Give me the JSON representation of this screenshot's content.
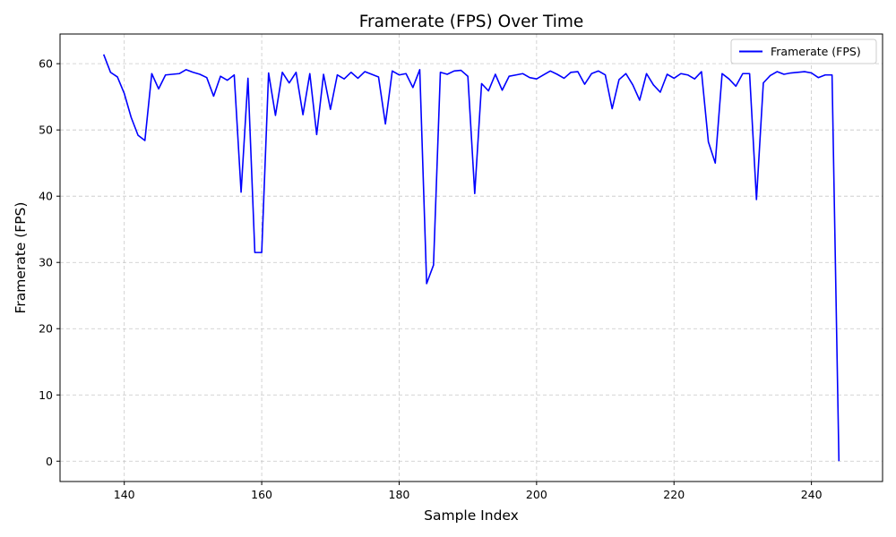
{
  "chart_data": {
    "type": "line",
    "title": "Framerate (FPS) Over Time",
    "xlabel": "Sample Index",
    "ylabel": "Framerate (FPS)",
    "xlim": [
      130.65,
      250.35
    ],
    "ylim": [
      -3.07,
      64.48
    ],
    "xticks": [
      140,
      160,
      180,
      200,
      220,
      240
    ],
    "yticks": [
      0,
      10,
      20,
      30,
      40,
      50,
      60
    ],
    "grid": true,
    "legend_position": "top-right",
    "series": [
      {
        "name": "Framerate (FPS)",
        "color": "#0000ff",
        "x": [
          137,
          138,
          139,
          140,
          141,
          142,
          143,
          144,
          145,
          146,
          147,
          148,
          149,
          150,
          151,
          152,
          153,
          154,
          155,
          156,
          157,
          158,
          159,
          160,
          161,
          162,
          163,
          164,
          165,
          166,
          167,
          168,
          169,
          170,
          171,
          172,
          173,
          174,
          175,
          176,
          177,
          178,
          179,
          180,
          181,
          182,
          183,
          184,
          185,
          186,
          187,
          188,
          189,
          190,
          191,
          192,
          193,
          194,
          195,
          196,
          197,
          198,
          199,
          200,
          201,
          202,
          203,
          204,
          205,
          206,
          207,
          208,
          209,
          210,
          211,
          212,
          213,
          214,
          215,
          216,
          217,
          218,
          219,
          220,
          221,
          222,
          223,
          224,
          225,
          226,
          227,
          228,
          229,
          230,
          231,
          232,
          233,
          234,
          235,
          236,
          237,
          238,
          239,
          240,
          241,
          242,
          243,
          244
        ],
        "y": [
          61.4,
          58.7,
          58.0,
          55.5,
          51.9,
          49.2,
          48.4,
          58.5,
          56.2,
          58.3,
          58.4,
          58.5,
          59.1,
          58.7,
          58.4,
          57.9,
          55.1,
          58.1,
          57.5,
          58.3,
          40.6,
          57.8,
          31.5,
          31.5,
          58.6,
          52.2,
          58.7,
          57.1,
          58.7,
          52.3,
          58.5,
          49.3,
          58.4,
          53.1,
          58.3,
          57.7,
          58.7,
          57.8,
          58.8,
          58.4,
          58.0,
          50.9,
          58.9,
          58.3,
          58.5,
          56.4,
          59.1,
          26.8,
          29.6,
          58.7,
          58.4,
          58.9,
          59.0,
          58.1,
          40.4,
          57.0,
          55.9,
          58.4,
          56.0,
          58.1,
          58.3,
          58.5,
          57.9,
          57.7,
          58.3,
          58.9,
          58.4,
          57.8,
          58.7,
          58.8,
          56.9,
          58.5,
          58.9,
          58.3,
          53.2,
          57.6,
          58.5,
          56.8,
          54.5,
          58.5,
          56.8,
          55.7,
          58.4,
          57.8,
          58.5,
          58.3,
          57.7,
          58.8,
          48.2,
          45.0,
          58.5,
          57.7,
          56.6,
          58.5,
          58.5,
          39.5,
          57.1,
          58.2,
          58.8,
          58.4,
          58.6,
          58.7,
          58.8,
          58.6,
          57.9,
          58.3,
          58.3,
          0.0
        ]
      }
    ]
  }
}
